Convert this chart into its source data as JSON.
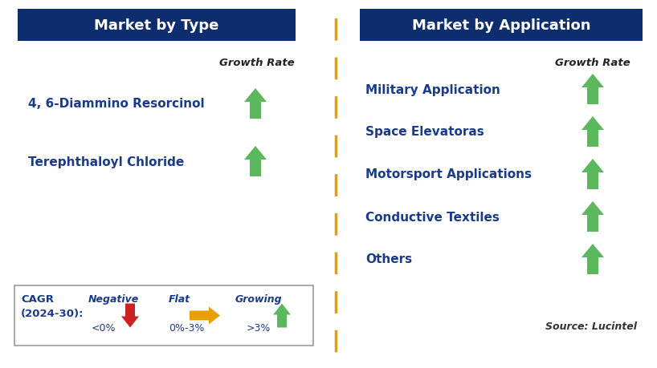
{
  "left_header": "Market by Type",
  "right_header": "Market by Application",
  "left_items": [
    "4, 6-Diammino Resorcinol",
    "Terephthaloyl Chloride"
  ],
  "right_items": [
    "Military Application",
    "Space Elevatoras",
    "Motorsport Applications",
    "Conductive Textiles",
    "Others"
  ],
  "growth_rate_label": "Growth Rate",
  "header_bg": "#0d2d6e",
  "header_text_color": "#ffffff",
  "item_text_color": "#1a3a8c",
  "arrow_up_color": "#5cb85c",
  "arrow_down_color": "#cc2222",
  "arrow_flat_color": "#e8a000",
  "divider_color": "#e8a000",
  "bg_color": "#ffffff",
  "border_color": "#999999",
  "source_text": "Source: Lucintel",
  "fig_w": 8.18,
  "fig_h": 4.6
}
